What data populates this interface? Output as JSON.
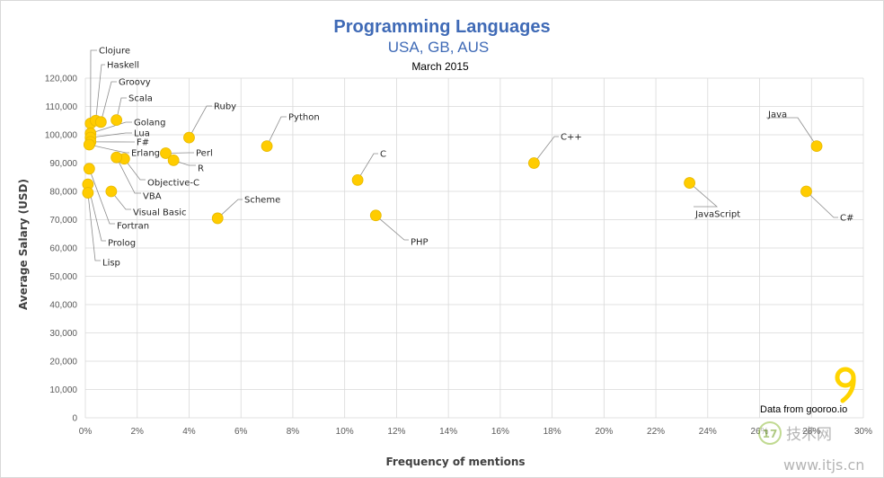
{
  "chart_data": {
    "type": "scatter",
    "title": "Programming Languages",
    "subtitle": "USA, GB, AUS",
    "date": "March 2015",
    "xlabel": "Frequency of mentions",
    "ylabel": "Average Salary (USD)",
    "xlim": [
      0,
      30
    ],
    "ylim": [
      0,
      120000
    ],
    "x_ticks": [
      "0%",
      "2%",
      "4%",
      "6%",
      "8%",
      "10%",
      "12%",
      "14%",
      "16%",
      "18%",
      "20%",
      "22%",
      "24%",
      "26%",
      "28%",
      "30%"
    ],
    "y_ticks": [
      "0",
      "10,000",
      "20,000",
      "30,000",
      "40,000",
      "50,000",
      "60,000",
      "70,000",
      "80,000",
      "90,000",
      "100,000",
      "110,000",
      "120,000"
    ],
    "grid": true,
    "points": [
      {
        "label": "Clojure",
        "x": 0.2,
        "y": 104000
      },
      {
        "label": "Haskell",
        "x": 0.4,
        "y": 105000
      },
      {
        "label": "Groovy",
        "x": 0.6,
        "y": 104500
      },
      {
        "label": "Scala",
        "x": 1.2,
        "y": 105200
      },
      {
        "label": "Golang",
        "x": 0.2,
        "y": 100500
      },
      {
        "label": "Lua",
        "x": 0.2,
        "y": 99000
      },
      {
        "label": "F#",
        "x": 0.2,
        "y": 97500
      },
      {
        "label": "Erlang",
        "x": 0.15,
        "y": 96500
      },
      {
        "label": "Ruby",
        "x": 4.0,
        "y": 99000
      },
      {
        "label": "Python",
        "x": 7.0,
        "y": 96000
      },
      {
        "label": "Perl",
        "x": 3.1,
        "y": 93500
      },
      {
        "label": "R",
        "x": 3.4,
        "y": 91000
      },
      {
        "label": "Objective-C",
        "x": 1.5,
        "y": 91500
      },
      {
        "label": "VBA",
        "x": 1.2,
        "y": 92000
      },
      {
        "label": "Visual Basic",
        "x": 1.0,
        "y": 80000
      },
      {
        "label": "Fortran",
        "x": 0.15,
        "y": 88000
      },
      {
        "label": "Prolog",
        "x": 0.1,
        "y": 82500
      },
      {
        "label": "Lisp",
        "x": 0.1,
        "y": 79500
      },
      {
        "label": "Scheme",
        "x": 5.1,
        "y": 70500
      },
      {
        "label": "C",
        "x": 10.5,
        "y": 84000
      },
      {
        "label": "PHP",
        "x": 11.2,
        "y": 71500
      },
      {
        "label": "C++",
        "x": 17.3,
        "y": 90000
      },
      {
        "label": "JavaScript",
        "x": 23.3,
        "y": 83000
      },
      {
        "label": "Java",
        "x": 28.2,
        "y": 96000
      },
      {
        "label": "C#",
        "x": 27.8,
        "y": 80000
      }
    ]
  },
  "source_text": "Data from gooroo.io",
  "logo_glyph": "9",
  "watermark": {
    "text": "技术网",
    "url": "www.itjs.cn",
    "badge": "17"
  }
}
